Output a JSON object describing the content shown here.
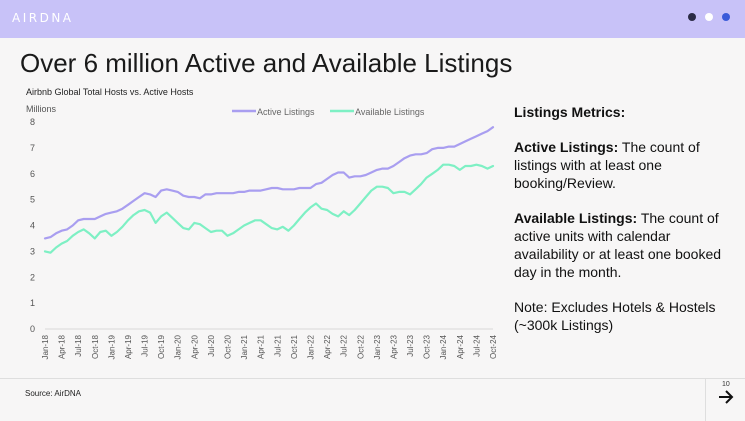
{
  "header": {
    "logo_text": "AIRDNA",
    "bar_color": "#c8c2f8",
    "nav_dots": [
      {
        "color": "#2b2b45",
        "icon": "dot-icon"
      },
      {
        "color": "#ffffff",
        "icon": "dot-icon"
      },
      {
        "color": "#3b5bd9",
        "icon": "dot-icon"
      }
    ]
  },
  "page_title": "Over 6 million Active and Available Listings",
  "chart_data": {
    "type": "line",
    "title": "Airbnb Global Total Hosts vs. Active Hosts",
    "ylabel": "Millions",
    "xlabel": "",
    "ylim": [
      0,
      8
    ],
    "yticks": [
      0,
      1,
      2,
      3,
      4,
      5,
      6,
      7,
      8
    ],
    "grid": false,
    "legend_position": "top-right",
    "x_tick_labels": [
      "Jan-18",
      "Apr-18",
      "Jul-18",
      "Oct-18",
      "Jan-19",
      "Apr-19",
      "Jul-19",
      "Oct-19",
      "Jan-20",
      "Apr-20",
      "Jul-20",
      "Oct-20",
      "Jan-21",
      "Apr-21",
      "Jul-21",
      "Oct-21",
      "Jan-22",
      "Apr-22",
      "Jul-22",
      "Oct-22",
      "Jan-23",
      "Apr-23",
      "Jul-23",
      "Oct-23",
      "Jan-24",
      "Apr-24",
      "Jul-24",
      "Oct-24"
    ],
    "x_tick_every": 3,
    "series": [
      {
        "name": "Active Listings",
        "color": "#a99ef0",
        "values": [
          3.5,
          3.55,
          3.7,
          3.8,
          3.85,
          4.0,
          4.2,
          4.25,
          4.25,
          4.25,
          4.35,
          4.45,
          4.5,
          4.55,
          4.65,
          4.8,
          4.95,
          5.1,
          5.25,
          5.2,
          5.1,
          5.35,
          5.4,
          5.35,
          5.3,
          5.15,
          5.1,
          5.1,
          5.05,
          5.2,
          5.2,
          5.25,
          5.25,
          5.25,
          5.25,
          5.3,
          5.3,
          5.35,
          5.35,
          5.35,
          5.4,
          5.45,
          5.45,
          5.4,
          5.4,
          5.4,
          5.45,
          5.45,
          5.45,
          5.6,
          5.65,
          5.8,
          5.95,
          6.05,
          6.05,
          5.85,
          5.9,
          5.9,
          5.95,
          6.05,
          6.15,
          6.2,
          6.2,
          6.3,
          6.45,
          6.6,
          6.7,
          6.75,
          6.75,
          6.8,
          6.95,
          7.0,
          7.0,
          7.05,
          7.05,
          7.15,
          7.25,
          7.35,
          7.45,
          7.55,
          7.65,
          7.8
        ]
      },
      {
        "name": "Available Listings",
        "color": "#7ef0c4",
        "values": [
          3.0,
          2.95,
          3.15,
          3.3,
          3.4,
          3.6,
          3.75,
          3.85,
          3.7,
          3.5,
          3.75,
          3.8,
          3.6,
          3.75,
          3.95,
          4.2,
          4.4,
          4.55,
          4.6,
          4.5,
          4.1,
          4.35,
          4.5,
          4.3,
          4.1,
          3.9,
          3.85,
          4.1,
          4.05,
          3.9,
          3.75,
          3.8,
          3.8,
          3.6,
          3.7,
          3.85,
          4.0,
          4.1,
          4.2,
          4.2,
          4.05,
          3.9,
          3.85,
          3.95,
          3.8,
          4.0,
          4.25,
          4.5,
          4.7,
          4.85,
          4.65,
          4.6,
          4.45,
          4.35,
          4.55,
          4.4,
          4.6,
          4.85,
          5.1,
          5.35,
          5.5,
          5.5,
          5.45,
          5.25,
          5.3,
          5.3,
          5.2,
          5.4,
          5.6,
          5.85,
          6.0,
          6.15,
          6.35,
          6.35,
          6.3,
          6.15,
          6.3,
          6.3,
          6.35,
          6.3,
          6.2,
          6.3
        ]
      }
    ]
  },
  "sidebar": {
    "heading": "Listings Metrics:",
    "active_label": "Active Listings:",
    "active_text": " The count of listings with at least one booking/Review.",
    "available_label": "Available Listings:",
    "available_text": " The count of active units with calendar availability or at least one booked day in the month.",
    "note": "Note: Excludes Hotels & Hostels (~300k Listings)"
  },
  "footer": {
    "source": "Source: AirDNA",
    "page_number": "10",
    "next_icon": "arrow-right-icon"
  }
}
